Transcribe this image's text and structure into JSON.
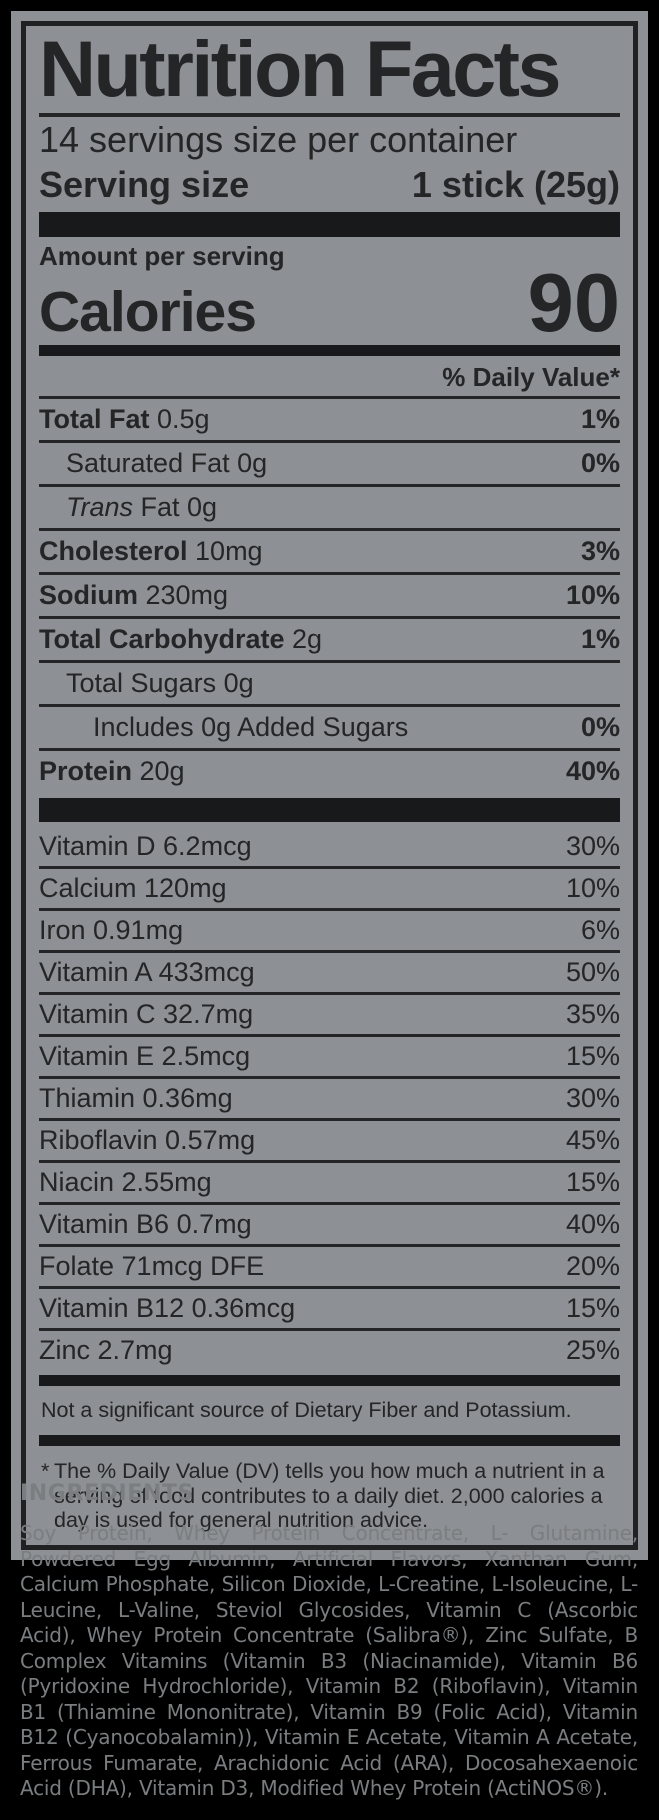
{
  "colors": {
    "page_bg": "#000000",
    "panel_bg": "#8d9094",
    "ink": "#232526",
    "bar": "#17191a",
    "ingredients_text": "#7b7e80"
  },
  "label": {
    "title": "Nutrition Facts",
    "servings_per_container": "14 servings size per container",
    "serving_size_label": "Serving size",
    "serving_size_value": "1 stick (25g)",
    "amount_per_serving": "Amount per serving",
    "calories_label": "Calories",
    "calories_value": "90",
    "daily_value_header": "% Daily Value*",
    "main_rows": [
      {
        "bold": "Total Fat",
        "italic": "",
        "rest": " 0.5g",
        "dv": "1%",
        "indent": 0
      },
      {
        "bold": "",
        "italic": "",
        "rest": "Saturated Fat 0g",
        "dv": "0%",
        "indent": 1
      },
      {
        "bold": "",
        "italic": "Trans",
        "rest": " Fat 0g",
        "dv": "",
        "indent": 1
      },
      {
        "bold": "Cholesterol",
        "italic": "",
        "rest": " 10mg",
        "dv": "3%",
        "indent": 0
      },
      {
        "bold": "Sodium",
        "italic": "",
        "rest": " 230mg",
        "dv": "10%",
        "indent": 0
      },
      {
        "bold": "Total Carbohydrate",
        "italic": "",
        "rest": " 2g",
        "dv": "1%",
        "indent": 0
      },
      {
        "bold": "",
        "italic": "",
        "rest": "Total Sugars 0g",
        "dv": "",
        "indent": 1
      },
      {
        "bold": "",
        "italic": "",
        "rest": "Includes 0g Added Sugars",
        "dv": "0%",
        "indent": 2
      },
      {
        "bold": "Protein",
        "italic": "",
        "rest": " 20g",
        "dv": "40%",
        "indent": 0
      }
    ],
    "vitamin_rows": [
      {
        "name": "Vitamin D 6.2mcg",
        "dv": "30%"
      },
      {
        "name": "Calcium 120mg",
        "dv": "10%"
      },
      {
        "name": "Iron 0.91mg",
        "dv": "6%"
      },
      {
        "name": "Vitamin A 433mcg",
        "dv": "50%"
      },
      {
        "name": "Vitamin C 32.7mg",
        "dv": "35%"
      },
      {
        "name": "Vitamin E 2.5mcg",
        "dv": "15%"
      },
      {
        "name": "Thiamin 0.36mg",
        "dv": "30%"
      },
      {
        "name": "Riboflavin 0.57mg",
        "dv": "45%"
      },
      {
        "name": "Niacin 2.55mg",
        "dv": "15%"
      },
      {
        "name": "Vitamin B6 0.7mg",
        "dv": "40%"
      },
      {
        "name": "Folate 71mcg DFE",
        "dv": "20%"
      },
      {
        "name": "Vitamin B12 0.36mcg",
        "dv": "15%"
      },
      {
        "name": "Zinc 2.7mg",
        "dv": "25%"
      }
    ],
    "note": "Not a significant source of Dietary Fiber and Potassium.",
    "footnote_star": "*",
    "footnote": "The % Daily Value (DV) tells you how much a nutrient in a serving of food contributes to a daily diet. 2,000 calories a day is used for general nutrition advice."
  },
  "ingredients": {
    "heading": "INGREDIENTS",
    "text": "Soy Protein, Whey Protein Concentrate, L- Glutamine, Powdered Egg Albumin, Artificial Flavors, Xanthan Gum, Calcium Phosphate, Silicon Dioxide, L-Creatine, L-Isoleucine, L-Leucine, L-Valine, Steviol Glycosides, Vitamin C (Ascorbic Acid), Whey Protein Concentrate (Salibra®), Zinc Sulfate, B Complex Vitamins (Vitamin B3 (Niacinamide), Vitamin B6 (Pyridoxine Hydrochloride), Vitamin B2 (Riboflavin), Vitamin B1 (Thiamine Mononitrate), Vitamin B9 (Folic Acid), Vitamin B12 (Cyanocobalamin)), Vitamin E Acetate, Vitamin A Acetate, Ferrous Fumarate, Arachidonic Acid (ARA), Docosahexaenoic Acid (DHA), Vitamin D3, Modified Whey Protein (ActiNOS®)."
  }
}
